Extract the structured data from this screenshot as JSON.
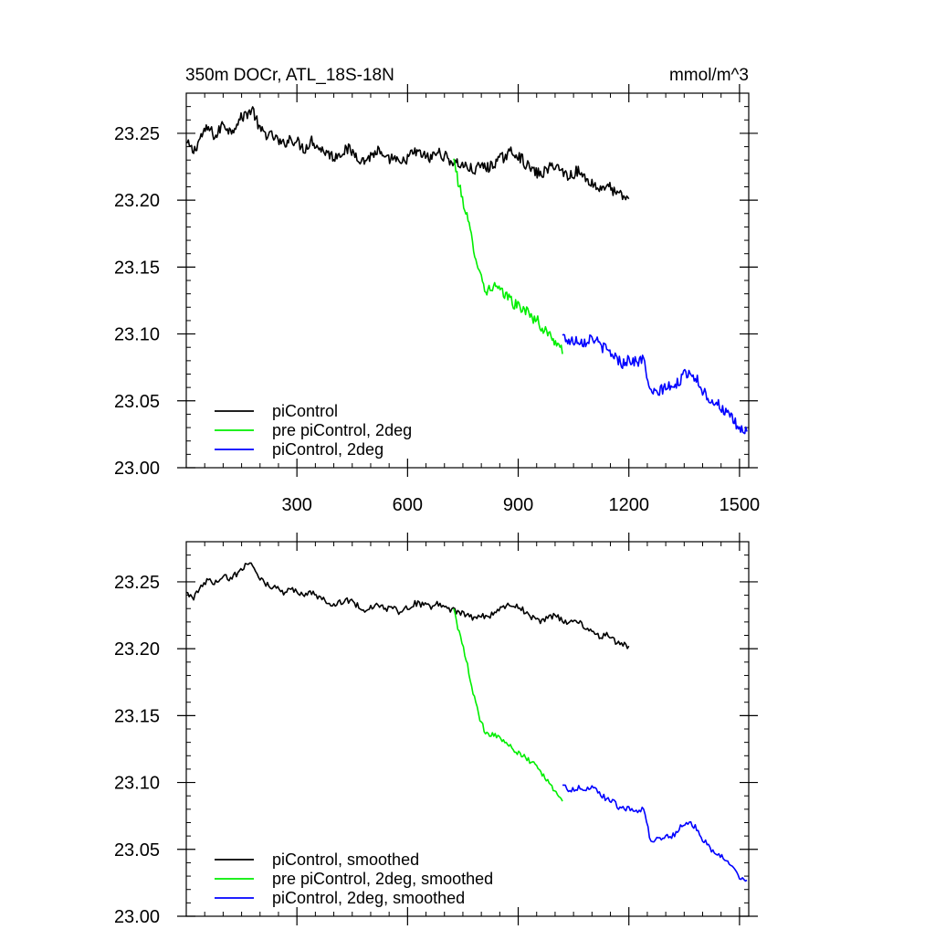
{
  "figure": {
    "title_left": "350m DOCr, ATL_18S-18N",
    "title_right": "mmol/m^3"
  },
  "colors": {
    "piControl": "#000000",
    "pre_piControl_2deg": "#00ee00",
    "piControl_2deg": "#0000ff"
  },
  "chart_data": [
    {
      "type": "line",
      "title": "350m DOCr, ATL_18S-18N",
      "units": "mmol/m^3",
      "xlim": [
        0,
        1525
      ],
      "ylim": [
        23.0,
        23.28
      ],
      "xticks": [
        300,
        600,
        900,
        1200,
        1500
      ],
      "xticklabels": [
        "300",
        "600",
        "900",
        "1200",
        "1500"
      ],
      "yticks": [
        23.0,
        23.05,
        23.1,
        23.15,
        23.2,
        23.25
      ],
      "yticklabels": [
        "23.00",
        "23.05",
        "23.10",
        "23.15",
        "23.20",
        "23.25"
      ],
      "grid": false,
      "legend_position": "bottom-left",
      "series": [
        {
          "name": "piControl",
          "color_key": "piControl",
          "x": [
            0,
            20,
            40,
            60,
            80,
            100,
            120,
            140,
            160,
            180,
            200,
            220,
            240,
            260,
            280,
            300,
            320,
            340,
            360,
            380,
            400,
            420,
            440,
            460,
            480,
            500,
            520,
            540,
            560,
            580,
            600,
            620,
            640,
            660,
            680,
            700,
            720,
            740,
            760,
            780,
            800,
            820,
            840,
            860,
            880,
            900,
            920,
            940,
            960,
            980,
            1000,
            1020,
            1040,
            1060,
            1080,
            1100,
            1120,
            1140,
            1160,
            1180,
            1200
          ],
          "y": [
            23.243,
            23.236,
            23.248,
            23.254,
            23.247,
            23.258,
            23.251,
            23.259,
            23.264,
            23.268,
            23.252,
            23.249,
            23.247,
            23.241,
            23.246,
            23.244,
            23.238,
            23.245,
            23.239,
            23.236,
            23.232,
            23.236,
            23.238,
            23.234,
            23.229,
            23.233,
            23.237,
            23.229,
            23.232,
            23.226,
            23.232,
            23.236,
            23.234,
            23.231,
            23.236,
            23.233,
            23.229,
            23.227,
            23.225,
            23.222,
            23.226,
            23.224,
            23.229,
            23.232,
            23.236,
            23.234,
            23.227,
            23.222,
            23.219,
            23.223,
            23.227,
            23.221,
            23.218,
            23.222,
            23.217,
            23.213,
            23.208,
            23.212,
            23.206,
            23.203,
            23.201
          ]
        },
        {
          "name": "pre piControl, 2deg",
          "color_key": "pre_piControl_2deg",
          "x": [
            725,
            740,
            755,
            770,
            785,
            800,
            815,
            830,
            845,
            860,
            875,
            890,
            905,
            920,
            935,
            950,
            965,
            980,
            995,
            1010,
            1020
          ],
          "y": [
            23.231,
            23.21,
            23.195,
            23.176,
            23.158,
            23.142,
            23.131,
            23.136,
            23.134,
            23.129,
            23.128,
            23.122,
            23.12,
            23.118,
            23.113,
            23.111,
            23.104,
            23.101,
            23.096,
            23.092,
            23.085
          ]
        },
        {
          "name": "piControl, 2deg",
          "color_key": "piControl_2deg",
          "x": [
            1020,
            1040,
            1060,
            1080,
            1100,
            1120,
            1140,
            1160,
            1180,
            1200,
            1220,
            1240,
            1260,
            1280,
            1300,
            1320,
            1340,
            1360,
            1380,
            1400,
            1420,
            1440,
            1460,
            1480,
            1500,
            1520
          ],
          "y": [
            23.099,
            23.094,
            23.096,
            23.094,
            23.098,
            23.092,
            23.088,
            23.084,
            23.078,
            23.081,
            23.079,
            23.081,
            23.055,
            23.056,
            23.061,
            23.059,
            23.066,
            23.072,
            23.068,
            23.058,
            23.051,
            23.048,
            23.042,
            23.036,
            23.029,
            23.027
          ]
        }
      ]
    },
    {
      "type": "line",
      "xlim": [
        0,
        1525
      ],
      "ylim": [
        23.0,
        23.28
      ],
      "xticks": [
        300,
        600,
        900,
        1200,
        1500
      ],
      "yticks": [
        23.0,
        23.05,
        23.1,
        23.15,
        23.2,
        23.25
      ],
      "yticklabels": [
        "23.00",
        "23.05",
        "23.10",
        "23.15",
        "23.20",
        "23.25"
      ],
      "grid": false,
      "legend_position": "bottom-left",
      "series": [
        {
          "name": "piControl, smoothed",
          "color_key": "piControl",
          "x": [
            0,
            20,
            40,
            60,
            80,
            100,
            120,
            140,
            160,
            180,
            200,
            220,
            240,
            260,
            280,
            300,
            320,
            340,
            360,
            380,
            400,
            420,
            440,
            460,
            480,
            500,
            520,
            540,
            560,
            580,
            600,
            620,
            640,
            660,
            680,
            700,
            720,
            740,
            760,
            780,
            800,
            820,
            840,
            860,
            880,
            900,
            920,
            940,
            960,
            980,
            1000,
            1020,
            1040,
            1060,
            1080,
            1100,
            1120,
            1140,
            1160,
            1180,
            1200
          ],
          "y": [
            23.242,
            23.238,
            23.246,
            23.252,
            23.249,
            23.255,
            23.252,
            23.257,
            23.262,
            23.264,
            23.252,
            23.248,
            23.246,
            23.242,
            23.244,
            23.243,
            23.239,
            23.242,
            23.238,
            23.236,
            23.233,
            23.235,
            23.236,
            23.233,
            23.229,
            23.231,
            23.234,
            23.229,
            23.231,
            23.227,
            23.231,
            23.234,
            23.233,
            23.231,
            23.234,
            23.232,
            23.229,
            23.227,
            23.225,
            23.223,
            23.225,
            23.224,
            23.228,
            23.231,
            23.233,
            23.232,
            23.227,
            23.223,
            23.22,
            23.223,
            23.225,
            23.221,
            23.219,
            23.221,
            23.217,
            23.213,
            23.209,
            23.211,
            23.206,
            23.203,
            23.202
          ]
        },
        {
          "name": "pre piControl, 2deg, smoothed",
          "color_key": "pre_piControl_2deg",
          "x": [
            725,
            740,
            755,
            770,
            785,
            800,
            815,
            830,
            845,
            860,
            875,
            890,
            905,
            920,
            935,
            950,
            965,
            980,
            995,
            1010,
            1020
          ],
          "y": [
            23.23,
            23.212,
            23.196,
            23.178,
            23.158,
            23.144,
            23.136,
            23.137,
            23.135,
            23.131,
            23.128,
            23.124,
            23.121,
            23.118,
            23.115,
            23.112,
            23.106,
            23.101,
            23.096,
            23.091,
            23.086
          ]
        },
        {
          "name": "piControl, 2deg, smoothed",
          "color_key": "piControl_2deg",
          "x": [
            1020,
            1040,
            1060,
            1080,
            1100,
            1120,
            1140,
            1160,
            1180,
            1200,
            1220,
            1240,
            1260,
            1280,
            1300,
            1320,
            1340,
            1360,
            1380,
            1400,
            1420,
            1440,
            1460,
            1480,
            1500,
            1520
          ],
          "y": [
            23.098,
            23.094,
            23.096,
            23.095,
            23.097,
            23.091,
            23.088,
            23.085,
            23.08,
            23.081,
            23.079,
            23.08,
            23.056,
            23.057,
            23.061,
            23.06,
            23.067,
            23.071,
            23.067,
            23.058,
            23.051,
            23.047,
            23.042,
            23.036,
            23.03,
            23.027
          ]
        }
      ]
    }
  ]
}
